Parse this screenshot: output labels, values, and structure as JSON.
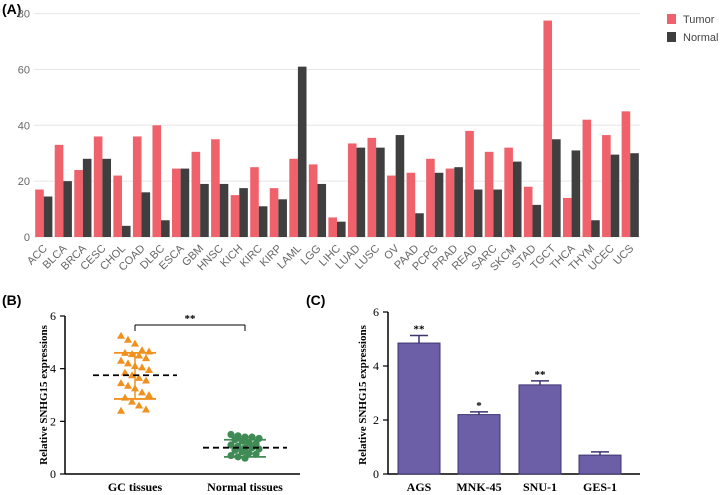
{
  "panels": {
    "a": "(A)",
    "b": "(B)",
    "c": "(C)"
  },
  "chart_data": [
    {
      "type": "bar",
      "categories": [
        "ACC",
        "BLCA",
        "BRCA",
        "CESC",
        "CHOL",
        "COAD",
        "DLBC",
        "ESCA",
        "GBM",
        "HNSC",
        "KICH",
        "KIRC",
        "KIRP",
        "LAML",
        "LGG",
        "LIHC",
        "LUAD",
        "LUSC",
        "OV",
        "PAAD",
        "PCPG",
        "PRAD",
        "READ",
        "SARC",
        "SKCM",
        "STAD",
        "TGCT",
        "THCA",
        "THYM",
        "UCEC",
        "UCS"
      ],
      "series": [
        {
          "name": "Tumor",
          "color": "#f0626b",
          "values": [
            17,
            33,
            24,
            36,
            22,
            36,
            40,
            24.5,
            30.5,
            35,
            15,
            25,
            17.5,
            28,
            26,
            7,
            33.5,
            35.5,
            22,
            23,
            28,
            24.5,
            38,
            30.5,
            32,
            18,
            77.5,
            14,
            42,
            36.5,
            45
          ]
        },
        {
          "name": "Normal",
          "color": "#3f3f3f",
          "values": [
            14.5,
            20,
            28,
            28,
            4,
            16,
            6,
            24.5,
            19,
            19,
            17.5,
            11,
            13.5,
            61,
            19,
            5.5,
            32,
            32,
            36.5,
            8.5,
            23,
            25,
            17,
            17,
            27,
            11.5,
            35,
            31,
            6,
            29.5,
            30
          ]
        }
      ],
      "yticks": [
        0,
        20,
        40,
        60,
        80
      ],
      "ylim": [
        0,
        82
      ],
      "legend_position": "top-right"
    },
    {
      "type": "scatter",
      "ylabel": "Relative SNHG15 expressions",
      "categories": [
        "GC tissues",
        "Normal tissues"
      ],
      "yticks": [
        0,
        2,
        4,
        6
      ],
      "ylim": [
        0,
        6
      ],
      "groups": [
        {
          "name": "GC tissues",
          "color": "#f0901e",
          "marker": "triangle",
          "mean": 3.75,
          "sd_low": 2.85,
          "sd_high": 4.6,
          "points": [
            5.25,
            5.1,
            4.95,
            4.7,
            4.65,
            4.6,
            4.55,
            4.5,
            4.4,
            4.3,
            4.2,
            4.1,
            4.05,
            3.95,
            3.85,
            3.75,
            3.65,
            3.55,
            3.45,
            3.35,
            3.25,
            3.1,
            3.0,
            2.9,
            2.75,
            2.6,
            2.45,
            2.4
          ]
        },
        {
          "name": "Normal tissues",
          "color": "#3f8a55",
          "marker": "circle",
          "mean": 1.0,
          "sd_low": 0.65,
          "sd_high": 1.3,
          "points": [
            1.5,
            1.45,
            1.4,
            1.4,
            1.35,
            1.3,
            1.25,
            1.2,
            1.15,
            1.1,
            1.05,
            1.0,
            1.0,
            0.95,
            0.9,
            0.85,
            0.8,
            0.75,
            0.7,
            0.65,
            0.6
          ]
        }
      ],
      "significance": "**"
    },
    {
      "type": "bar",
      "ylabel": "Relative SNHG15 expressions",
      "categories": [
        "AGS",
        "MNK-45",
        "SNU-1",
        "GES-1"
      ],
      "values": [
        4.85,
        2.2,
        3.3,
        0.7
      ],
      "errors": [
        0.28,
        0.1,
        0.15,
        0.12
      ],
      "significance": [
        "**",
        "*",
        "**",
        ""
      ],
      "color": "#6c5fa8",
      "yticks": [
        0,
        2,
        4,
        6
      ],
      "ylim": [
        0,
        6
      ]
    }
  ]
}
